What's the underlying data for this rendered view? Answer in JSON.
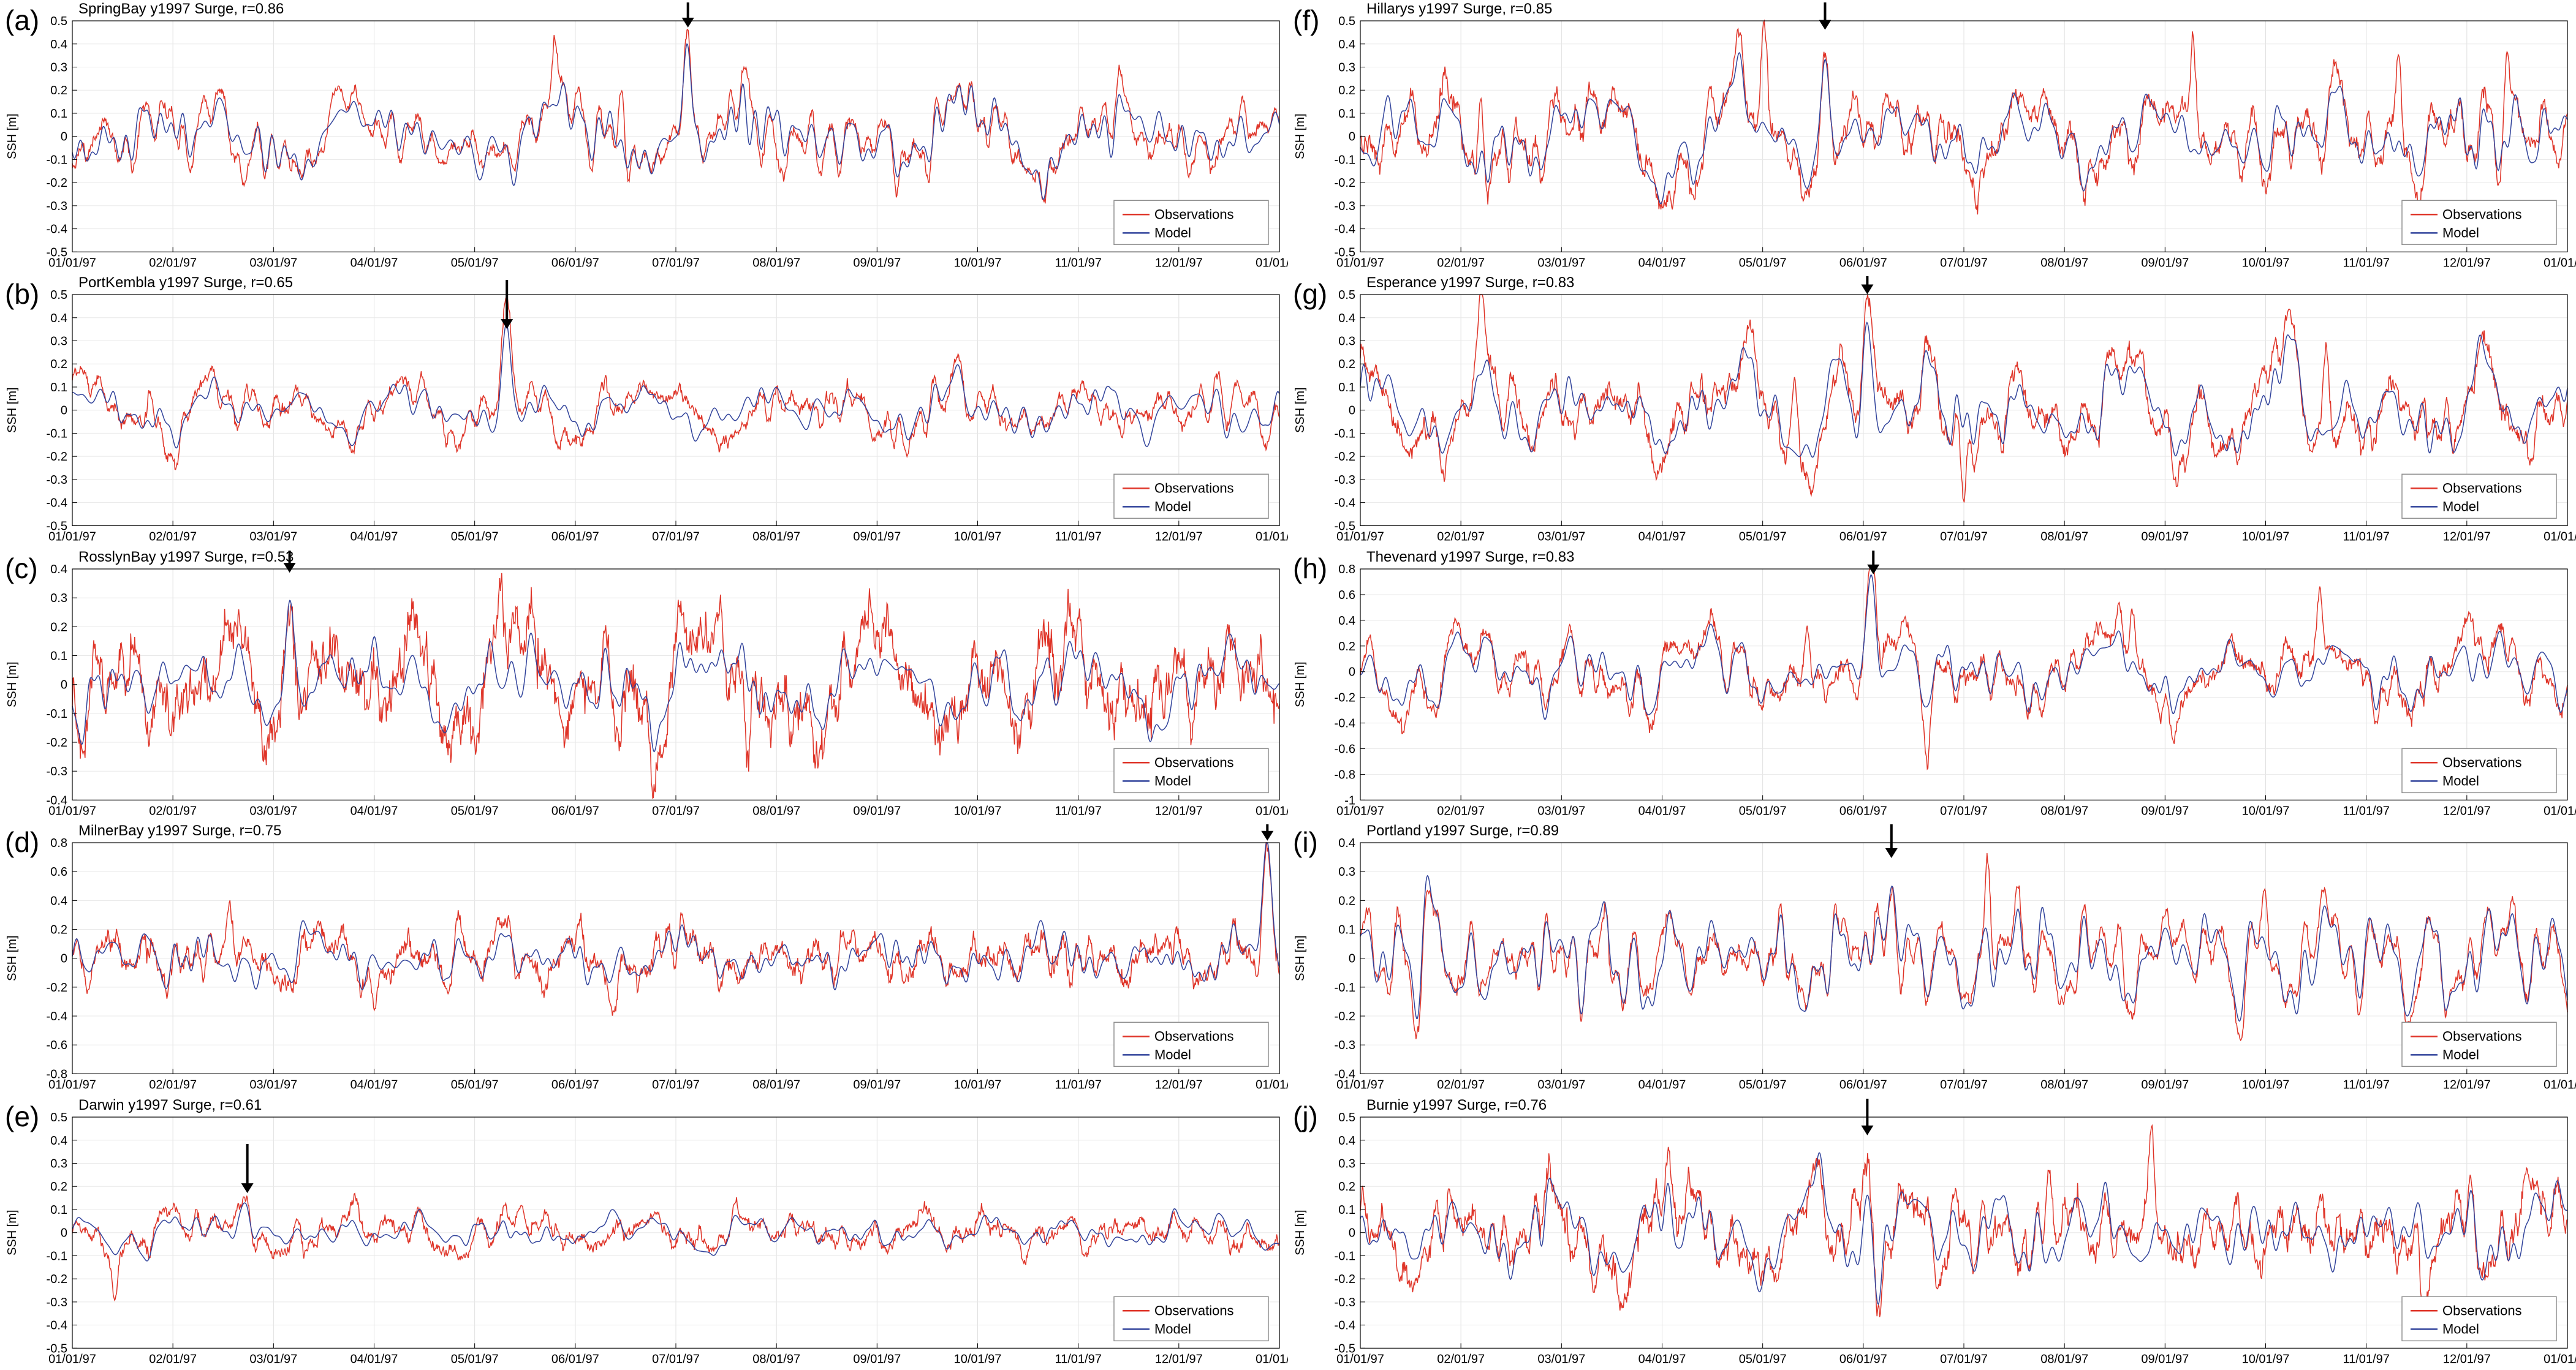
{
  "figure": {
    "background": "#ffffff"
  },
  "chart_data": {
    "type": "line",
    "ylabel": "SSH [m]",
    "xlabel": "",
    "grid": true,
    "legend_position": "bottom-right",
    "colors": {
      "observations": "#df3428",
      "model": "#31439b"
    },
    "legend": [
      {
        "label": "Observations",
        "series": "observations"
      },
      {
        "label": "Model",
        "series": "model"
      }
    ],
    "x_tick_labels": [
      "01/01/97",
      "02/01/97",
      "03/01/97",
      "04/01/97",
      "05/01/97",
      "06/01/97",
      "07/01/97",
      "08/01/97",
      "09/01/97",
      "10/01/97",
      "11/01/97",
      "12/01/97",
      "01/01/98"
    ],
    "panels": [
      {
        "id": "a",
        "letter": "(a)",
        "title": "SpringBay y1997 Surge, r=0.86",
        "r": 0.86,
        "ylim": [
          -0.5,
          0.5
        ],
        "ytick_step": 0.1,
        "amplitude_m": 0.085,
        "hf_noise_m": 0.012,
        "seed": 1,
        "arrow": {
          "x": 0.51,
          "y": 0.45
        },
        "obs_spikes": [
          {
            "x": 0.4,
            "y": 0.3
          },
          {
            "x": 0.455,
            "y": 0.27
          },
          {
            "x": 0.56,
            "y": 0.26
          },
          {
            "x": 0.585,
            "y": -0.27
          }
        ]
      },
      {
        "id": "b",
        "letter": "(b)",
        "title": "PortKembla y1997 Surge, r=0.65",
        "r": 0.65,
        "ylim": [
          -0.5,
          0.5
        ],
        "ytick_step": 0.1,
        "amplitude_m": 0.06,
        "hf_noise_m": 0.012,
        "seed": 2,
        "arrow": {
          "x": 0.36,
          "y": 0.33
        },
        "obs_spikes": [
          {
            "x": 0.065,
            "y": 0.17
          },
          {
            "x": 0.62,
            "y": -0.2
          },
          {
            "x": 0.935,
            "y": 0.14
          }
        ]
      },
      {
        "id": "c",
        "letter": "(c)",
        "title": "RosslynBay y1997 Surge, r=0.53",
        "r": 0.53,
        "ylim": [
          -0.4,
          0.4
        ],
        "ytick_step": 0.1,
        "amplitude_m": 0.075,
        "hf_noise_m": 0.035,
        "seed": 3,
        "arrow": {
          "x": 0.18,
          "y": 0.37
        },
        "obs_spikes": [
          {
            "x": 0.3,
            "y": 0.2
          },
          {
            "x": 0.355,
            "y": 0.33
          },
          {
            "x": 0.56,
            "y": -0.18
          }
        ]
      },
      {
        "id": "d",
        "letter": "(d)",
        "title": "MilnerBay y1997 Surge, r=0.75",
        "r": 0.75,
        "ylim": [
          -0.8,
          0.8
        ],
        "ytick_step": 0.2,
        "amplitude_m": 0.09,
        "hf_noise_m": 0.03,
        "seed": 4,
        "arrow": {
          "x": 0.99,
          "y": 0.78
        },
        "obs_spikes": [
          {
            "x": 0.13,
            "y": 0.33
          },
          {
            "x": 0.25,
            "y": -0.33
          },
          {
            "x": 0.32,
            "y": 0.28
          },
          {
            "x": 0.45,
            "y": -0.28
          }
        ]
      },
      {
        "id": "e",
        "letter": "(e)",
        "title": "Darwin y1997 Surge, r=0.61",
        "r": 0.61,
        "ylim": [
          -0.5,
          0.5
        ],
        "ytick_step": 0.1,
        "amplitude_m": 0.04,
        "hf_noise_m": 0.012,
        "seed": 5,
        "arrow": {
          "x": 0.145,
          "y": 0.15
        },
        "obs_spikes": [
          {
            "x": 0.035,
            "y": -0.16
          },
          {
            "x": 0.52,
            "y": 0.1
          }
        ]
      },
      {
        "id": "f",
        "letter": "(f)",
        "title": "Hillarys y1997 Surge, r=0.85",
        "r": 0.85,
        "ylim": [
          -0.5,
          0.5
        ],
        "ytick_step": 0.1,
        "amplitude_m": 0.1,
        "hf_noise_m": 0.02,
        "seed": 6,
        "arrow": {
          "x": 0.385,
          "y": 0.44
        },
        "obs_spikes": [
          {
            "x": 0.1,
            "y": 0.34
          },
          {
            "x": 0.335,
            "y": 0.4
          },
          {
            "x": 0.69,
            "y": 0.44
          },
          {
            "x": 0.86,
            "y": 0.36
          },
          {
            "x": 0.95,
            "y": 0.4
          }
        ]
      },
      {
        "id": "g",
        "letter": "(g)",
        "title": "Esperance y1997 Surge, r=0.83",
        "r": 0.83,
        "ylim": [
          -0.5,
          0.5
        ],
        "ytick_step": 0.1,
        "amplitude_m": 0.11,
        "hf_noise_m": 0.02,
        "seed": 7,
        "arrow": {
          "x": 0.42,
          "y": 0.48
        },
        "obs_spikes": [
          {
            "x": 0.1,
            "y": 0.36
          },
          {
            "x": 0.36,
            "y": 0.4
          },
          {
            "x": 0.5,
            "y": -0.3
          },
          {
            "x": 0.8,
            "y": 0.43
          },
          {
            "x": 0.97,
            "y": -0.28
          }
        ]
      },
      {
        "id": "h",
        "letter": "(h)",
        "title": "Thevenard y1997 Surge, r=0.83",
        "r": 0.83,
        "ylim": [
          -1,
          0.8
        ],
        "ytick_step": 0.2,
        "amplitude_m": 0.14,
        "hf_noise_m": 0.03,
        "seed": 8,
        "arrow": {
          "x": 0.425,
          "y": 0.72
        },
        "obs_spikes": [
          {
            "x": 0.37,
            "y": 0.45
          },
          {
            "x": 0.47,
            "y": -0.45
          },
          {
            "x": 0.64,
            "y": 0.4
          },
          {
            "x": 0.795,
            "y": 0.5
          },
          {
            "x": 0.92,
            "y": 0.38
          }
        ]
      },
      {
        "id": "i",
        "letter": "(i)",
        "title": "Portland y1997 Surge, r=0.89",
        "r": 0.89,
        "ylim": [
          -0.4,
          0.4
        ],
        "ytick_step": 0.1,
        "amplitude_m": 0.09,
        "hf_noise_m": 0.012,
        "seed": 9,
        "arrow": {
          "x": 0.44,
          "y": 0.33
        },
        "obs_spikes": [
          {
            "x": 0.52,
            "y": 0.26
          },
          {
            "x": 0.63,
            "y": 0.27
          },
          {
            "x": 0.75,
            "y": 0.25
          }
        ]
      },
      {
        "id": "j",
        "letter": "(j)",
        "title": "Burnie y1997 Surge, r=0.76",
        "r": 0.76,
        "ylim": [
          -0.5,
          0.5
        ],
        "ytick_step": 0.1,
        "amplitude_m": 0.1,
        "hf_noise_m": 0.025,
        "seed": 10,
        "arrow": {
          "x": 0.42,
          "y": 0.4
        },
        "obs_spikes": [
          {
            "x": 0.57,
            "y": 0.35
          },
          {
            "x": 0.655,
            "y": 0.33
          },
          {
            "x": 0.88,
            "y": -0.28
          }
        ]
      }
    ]
  }
}
